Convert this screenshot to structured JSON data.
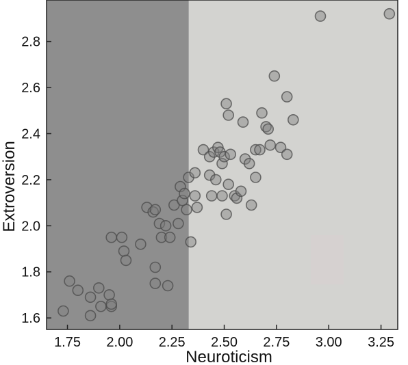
{
  "chart_data": {
    "type": "scatter",
    "xlabel": "Neuroticism",
    "ylabel": "Extroversion",
    "xlim": [
      1.65,
      3.33
    ],
    "ylim": [
      1.55,
      2.98
    ],
    "x_ticks": [
      "1.75",
      "2.00",
      "2.25",
      "2.50",
      "2.75",
      "3.00",
      "3.25"
    ],
    "y_ticks": [
      "1.6",
      "1.8",
      "2.0",
      "2.2",
      "2.4",
      "2.6",
      "2.8"
    ],
    "y_ticks_values": [
      1.6,
      1.8,
      2.0,
      2.2,
      2.4,
      2.6,
      2.8
    ],
    "x_ticks_values": [
      1.75,
      2.0,
      2.25,
      2.5,
      2.75,
      3.0,
      3.25
    ],
    "grid": false,
    "shaded_region": {
      "x_from": 1.65,
      "x_to": 2.33,
      "color": "#8e8e8e"
    },
    "background_color": "#d3d3d0",
    "marker_color": "#808080",
    "points": [
      [
        1.73,
        1.63
      ],
      [
        1.76,
        1.76
      ],
      [
        1.8,
        1.72
      ],
      [
        1.86,
        1.61
      ],
      [
        1.86,
        1.69
      ],
      [
        1.9,
        1.73
      ],
      [
        1.91,
        1.65
      ],
      [
        1.95,
        1.7
      ],
      [
        1.96,
        1.65
      ],
      [
        1.96,
        1.66
      ],
      [
        1.96,
        1.95
      ],
      [
        2.01,
        1.95
      ],
      [
        2.02,
        1.89
      ],
      [
        2.03,
        1.85
      ],
      [
        2.1,
        1.92
      ],
      [
        2.13,
        2.08
      ],
      [
        2.16,
        2.06
      ],
      [
        2.17,
        2.07
      ],
      [
        2.17,
        1.82
      ],
      [
        2.17,
        1.75
      ],
      [
        2.19,
        2.01
      ],
      [
        2.2,
        1.95
      ],
      [
        2.22,
        2.0
      ],
      [
        2.23,
        1.74
      ],
      [
        2.24,
        1.95
      ],
      [
        2.26,
        2.09
      ],
      [
        2.28,
        2.01
      ],
      [
        2.29,
        2.17
      ],
      [
        2.3,
        2.11
      ],
      [
        2.31,
        2.14
      ],
      [
        2.32,
        2.07
      ],
      [
        2.33,
        2.21
      ],
      [
        2.34,
        1.93
      ],
      [
        2.36,
        2.23
      ],
      [
        2.36,
        2.13
      ],
      [
        2.37,
        2.08
      ],
      [
        2.4,
        2.33
      ],
      [
        2.43,
        2.3
      ],
      [
        2.43,
        2.22
      ],
      [
        2.44,
        2.13
      ],
      [
        2.45,
        2.32
      ],
      [
        2.46,
        2.2
      ],
      [
        2.47,
        2.34
      ],
      [
        2.48,
        2.32
      ],
      [
        2.49,
        2.27
      ],
      [
        2.49,
        2.13
      ],
      [
        2.5,
        2.3
      ],
      [
        2.51,
        2.53
      ],
      [
        2.51,
        2.05
      ],
      [
        2.52,
        2.48
      ],
      [
        2.52,
        2.18
      ],
      [
        2.53,
        2.31
      ],
      [
        2.55,
        2.13
      ],
      [
        2.56,
        2.12
      ],
      [
        2.58,
        2.15
      ],
      [
        2.59,
        2.45
      ],
      [
        2.6,
        2.29
      ],
      [
        2.62,
        2.27
      ],
      [
        2.63,
        2.09
      ],
      [
        2.65,
        2.33
      ],
      [
        2.65,
        2.21
      ],
      [
        2.67,
        2.33
      ],
      [
        2.68,
        2.49
      ],
      [
        2.7,
        2.43
      ],
      [
        2.71,
        2.42
      ],
      [
        2.72,
        2.35
      ],
      [
        2.74,
        2.65
      ],
      [
        2.77,
        2.34
      ],
      [
        2.8,
        2.56
      ],
      [
        2.8,
        2.31
      ],
      [
        2.83,
        2.46
      ],
      [
        2.96,
        2.91
      ],
      [
        3.29,
        2.92
      ]
    ]
  }
}
